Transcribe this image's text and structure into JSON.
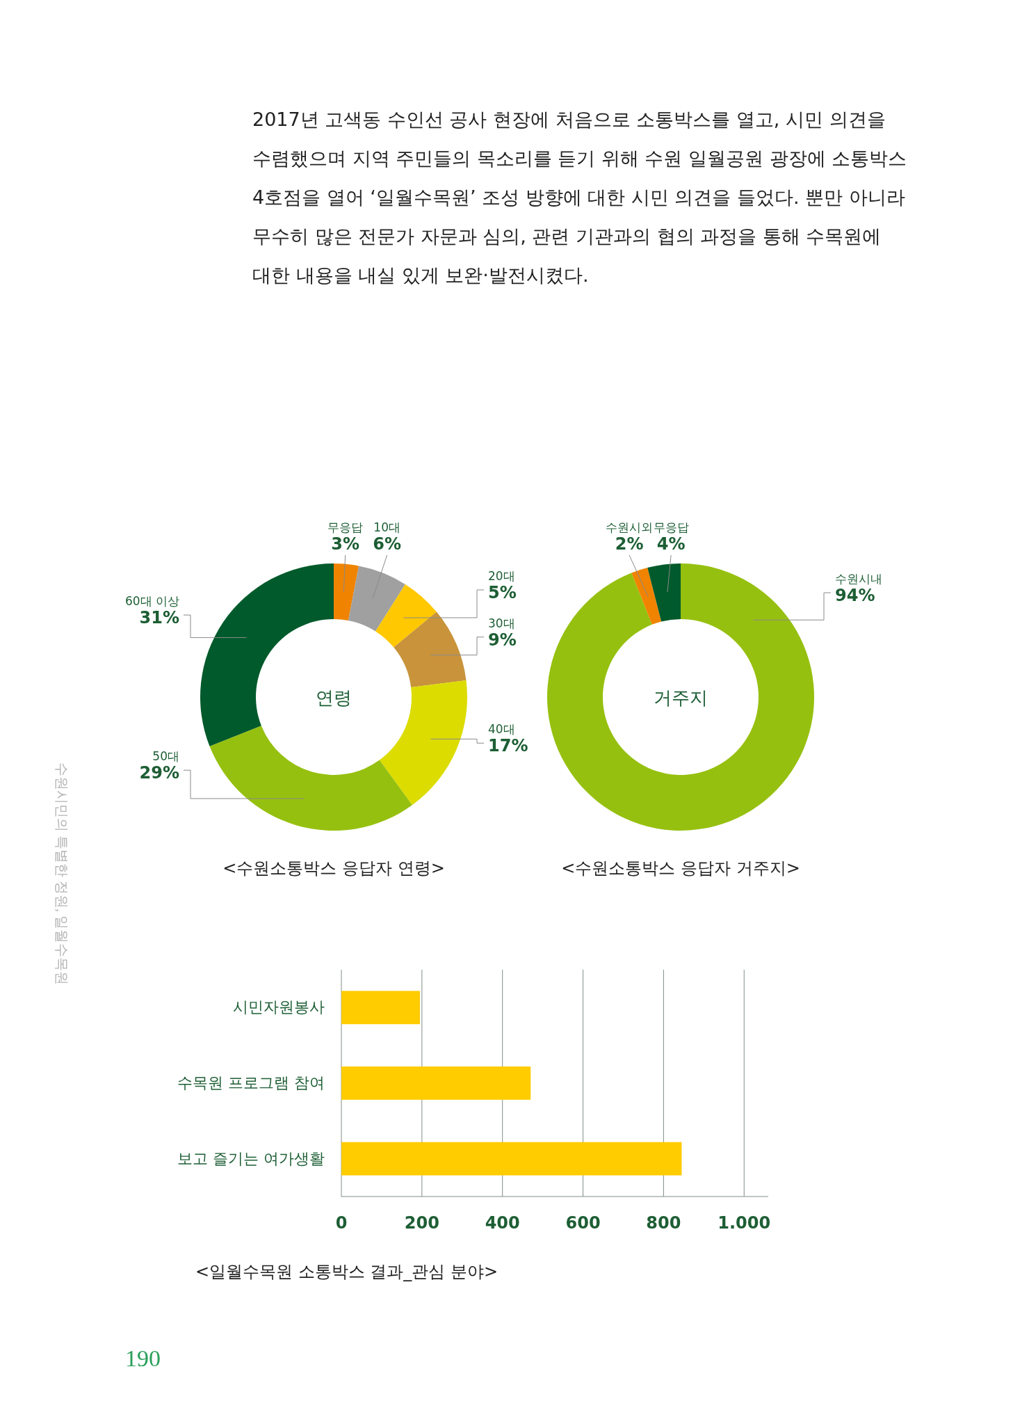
{
  "chart_data": [
    {
      "type": "donut",
      "title": "<수원소통박스 응답자 연령>",
      "subtitle": "연령",
      "categories": [
        "무응답",
        "10대",
        "20대",
        "30대",
        "40대",
        "50대",
        "60대 이상"
      ],
      "values": [
        3,
        6,
        5,
        9,
        17,
        29,
        31
      ],
      "colors": [
        "#f08300",
        "#a0a0a0",
        "#ffc800",
        "#c8933a",
        "#dcdc00",
        "#96c00f",
        "#005a2b"
      ],
      "value_labels": [
        "3%",
        "6%",
        "5%",
        "9%",
        "17%",
        "29%",
        "31%"
      ],
      "annotations": [
        "2017년 고색동 수인선 공사 현장에 처음으로 소통박스를 열고, 시민 의견을\n수렴했으며 지역 주민들의 목소리를 듣기 위해 수원 일월공원 광장에 소통박스\n4호점을 열어 ‘일월수목원’ 조성 방향에 대한 시민 의견을 들었다. 뿐만 아니라\n무수히 많은 전문가 자문과 심의, 관련 기관과의 협의 과정을 통해 수목원에\n대한 내용을 내실 있게 보완·발전시켰다.",
        "수원시민의 특별한 정원, 일월수목원",
        "190"
      ]
    },
    {
      "type": "donut",
      "title": "<수원소통박스 응답자 거주지>",
      "subtitle": "거주지",
      "categories": [
        "수원시내",
        "수원시외",
        "무응답"
      ],
      "values": [
        94,
        2,
        4
      ],
      "colors": [
        "#96c00f",
        "#f08300",
        "#005a2b"
      ],
      "value_labels": [
        "94%",
        "2%",
        "4%"
      ]
    },
    {
      "type": "bar",
      "orientation": "horizontal",
      "title": "<일월수목원 소통박스 결과_관심 분야>",
      "categories": [
        "시민자원봉사",
        "수목원 프로그램 참여",
        "보고 즐기는 여가생활"
      ],
      "values": [
        195,
        470,
        845
      ],
      "color": "#ffcc00",
      "xlim": [
        0,
        1060
      ],
      "xticks": [
        0,
        200,
        400,
        600,
        800,
        {
          "value": 1000,
          "label": "1.000"
        }
      ],
      "grid": "x"
    }
  ]
}
